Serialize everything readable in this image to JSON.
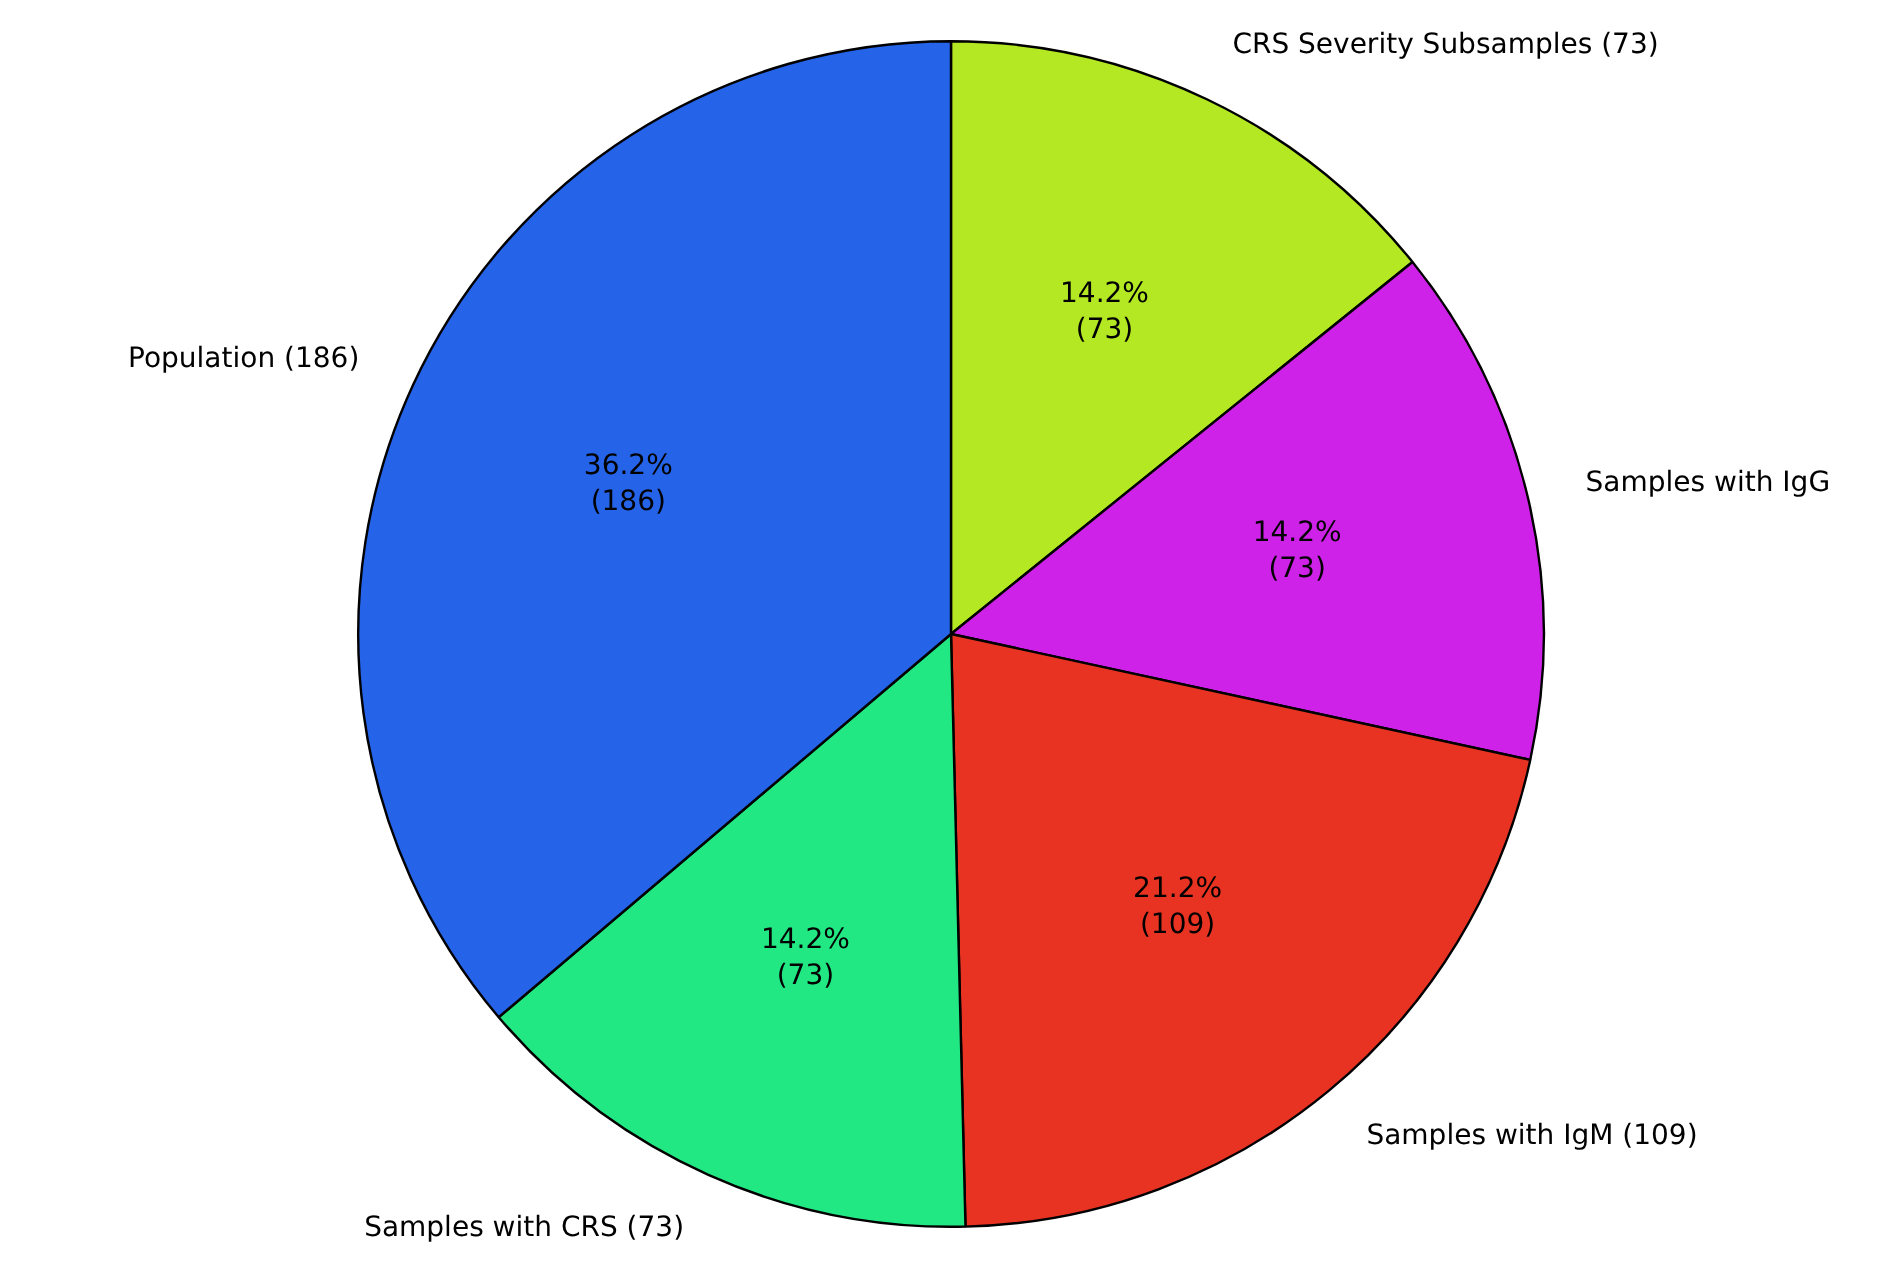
{
  "chart_data": {
    "type": "pie",
    "categories": [
      "CRS Severity Subsamples (73)",
      "Samples with IgG",
      "Samples with IgM (109)",
      "Samples with CRS (73)",
      "Population (186)"
    ],
    "values": [
      73,
      73,
      109,
      73,
      186
    ],
    "colors": [
      "#b3e823",
      "#cf22e8",
      "#e83323",
      "#22e884",
      "#2563e8"
    ],
    "value_labels": [
      "14.2%\n(73)",
      "14.2%\n(73)",
      "21.2%\n(109)",
      "14.2%\n(73)",
      "36.2%\n(186)"
    ],
    "legend": false
  }
}
